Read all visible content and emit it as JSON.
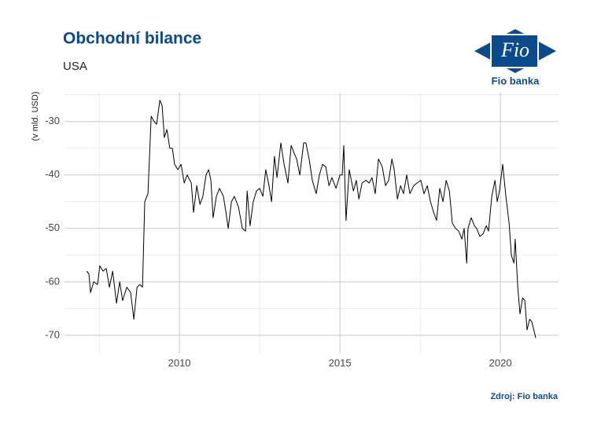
{
  "chart_data": {
    "type": "line",
    "title": "Obchodní bilance",
    "subtitle": "USA",
    "y_label": "(v mld. USD)",
    "source": "Zdroj: Fio banka",
    "color": "#000000",
    "grid": true,
    "xlim": [
      2006.42,
      2021.81
    ],
    "ylim": [
      -73.4,
      -24.6
    ],
    "xticks": [
      2010,
      2015,
      2020
    ],
    "yticks": [
      -30,
      -40,
      -50,
      -60,
      -70
    ],
    "xminorticks": [
      2007.5,
      2012.5,
      2017.5
    ],
    "yminorticks": [
      -25,
      -35,
      -45,
      -55,
      -65
    ],
    "x": [
      2007.11,
      2007.18,
      2007.23,
      2007.33,
      2007.45,
      2007.52,
      2007.62,
      2007.72,
      2007.82,
      2007.92,
      2008.04,
      2008.14,
      2008.23,
      2008.36,
      2008.48,
      2008.58,
      2008.68,
      2008.77,
      2008.85,
      2008.92,
      2009.02,
      2009.12,
      2009.21,
      2009.29,
      2009.39,
      2009.46,
      2009.53,
      2009.61,
      2009.7,
      2009.78,
      2009.85,
      2009.95,
      2010.05,
      2010.15,
      2010.24,
      2010.37,
      2010.44,
      2010.54,
      2010.64,
      2010.73,
      2010.83,
      2010.91,
      2010.98,
      2011.05,
      2011.15,
      2011.25,
      2011.37,
      2011.45,
      2011.52,
      2011.62,
      2011.71,
      2011.84,
      2011.96,
      2012.06,
      2012.11,
      2012.2,
      2012.3,
      2012.4,
      2012.5,
      2012.6,
      2012.69,
      2012.79,
      2012.87,
      2012.96,
      2013.04,
      2013.16,
      2013.26,
      2013.38,
      2013.48,
      2013.58,
      2013.65,
      2013.75,
      2013.87,
      2013.94,
      2014.04,
      2014.14,
      2014.26,
      2014.36,
      2014.46,
      2014.56,
      2014.66,
      2014.75,
      2014.88,
      2015.0,
      2015.07,
      2015.12,
      2015.19,
      2015.29,
      2015.42,
      2015.51,
      2015.59,
      2015.69,
      2015.81,
      2015.91,
      2016.0,
      2016.1,
      2016.2,
      2016.32,
      2016.42,
      2016.52,
      2016.62,
      2016.69,
      2016.79,
      2016.89,
      2016.98,
      2017.08,
      2017.18,
      2017.3,
      2017.4,
      2017.52,
      2017.62,
      2017.72,
      2017.82,
      2017.92,
      2018.01,
      2018.11,
      2018.21,
      2018.31,
      2018.41,
      2018.5,
      2018.6,
      2018.7,
      2018.8,
      2018.87,
      2018.95,
      2018.99,
      2019.09,
      2019.19,
      2019.26,
      2019.36,
      2019.46,
      2019.56,
      2019.63,
      2019.73,
      2019.83,
      2019.9,
      2019.97,
      2020.07,
      2020.17,
      2020.27,
      2020.34,
      2020.42,
      2020.46,
      2020.54,
      2020.61,
      2020.69,
      2020.76,
      2020.83,
      2020.91,
      2020.98,
      2021.1
    ],
    "values": [
      -58,
      -58.5,
      -62,
      -60,
      -60.5,
      -57,
      -58,
      -57.5,
      -61,
      -58,
      -64,
      -60,
      -63.5,
      -61,
      -62,
      -67,
      -61,
      -60.5,
      -61,
      -45,
      -43.5,
      -29,
      -30,
      -30.5,
      -26,
      -27,
      -33,
      -31.5,
      -35,
      -35,
      -38,
      -39,
      -38,
      -41.5,
      -40,
      -41.5,
      -47,
      -42,
      -45.5,
      -44,
      -40,
      -39,
      -41,
      -48,
      -44,
      -42.5,
      -44,
      -47,
      -50,
      -45,
      -44,
      -46,
      -50,
      -50.5,
      -43,
      -49.5,
      -45,
      -43,
      -42.5,
      -44,
      -39,
      -42,
      -45,
      -36.5,
      -40.5,
      -34,
      -38,
      -41.5,
      -34.5,
      -36,
      -37,
      -40,
      -34,
      -34,
      -37,
      -41,
      -43.5,
      -40,
      -38,
      -38.5,
      -42,
      -40.5,
      -42.5,
      -40,
      -40,
      -34.5,
      -48.5,
      -39,
      -43,
      -41,
      -44.5,
      -41.5,
      -41,
      -41.5,
      -40.5,
      -43.5,
      -37,
      -38.5,
      -42,
      -41,
      -37,
      -39,
      -44.5,
      -42,
      -43.5,
      -40,
      -43.5,
      -42,
      -41.5,
      -41,
      -43.5,
      -42,
      -45,
      -47,
      -48.5,
      -42.5,
      -45,
      -41,
      -43,
      -49,
      -50,
      -50.5,
      -52,
      -50,
      -56.5,
      -50,
      -48,
      -49.5,
      -50,
      -51.5,
      -51,
      -49.5,
      -50.5,
      -44,
      -41,
      -45,
      -43,
      -38,
      -44,
      -49,
      -55,
      -56.5,
      -52,
      -61,
      -66,
      -63,
      -63.5,
      -69,
      -67,
      -67.5,
      -70.5
    ]
  },
  "logo": {
    "text": "Fio",
    "caption": "Fio banka"
  }
}
